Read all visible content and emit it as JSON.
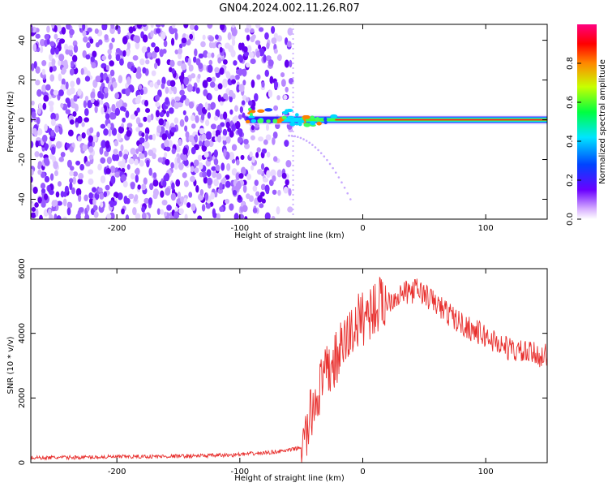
{
  "title": "GN04.2024.002.11.26.R07",
  "chart_data": [
    {
      "type": "heatmap",
      "xlabel": "Height of straight line (km)",
      "ylabel": "Frequency (Hz)",
      "xlim": [
        -270,
        150
      ],
      "ylim": [
        -50,
        48
      ],
      "x_ticks": [
        "-200",
        "-100",
        "0",
        "100"
      ],
      "y_ticks": [
        "-40",
        "-20",
        "0",
        "20",
        "40"
      ],
      "colorbar": {
        "label": "Normalized spectral amplitude",
        "range": [
          0,
          1
        ],
        "ticks": [
          "0.0",
          "0.2",
          "0.4",
          "0.6",
          "0.8"
        ]
      },
      "features": {
        "noise_region_x": [
          -270,
          -58
        ],
        "signal_band_x": [
          -95,
          150
        ],
        "signal_center_hz": 0,
        "faint_trail": {
          "x": [
            -60,
            -10
          ],
          "y": [
            -8,
            -40
          ]
        }
      },
      "grid": false
    },
    {
      "type": "line",
      "xlabel": "Height of straight line (km)",
      "ylabel": "SNR (10 * v/v)",
      "xlim": [
        -270,
        150
      ],
      "ylim": [
        0,
        6000
      ],
      "x_ticks": [
        "-200",
        "-100",
        "0",
        "100"
      ],
      "y_ticks": [
        "0",
        "2000",
        "4000",
        "6000"
      ],
      "color": "#e8302e",
      "series": [
        {
          "x": [
            -270,
            -240,
            -200,
            -150,
            -110,
            -80,
            -60,
            -48,
            -45,
            -40,
            -35,
            -30,
            -25,
            -20,
            -15,
            -10,
            -5,
            0,
            10,
            20,
            30,
            40,
            45,
            50,
            60,
            70,
            80,
            90,
            100,
            110,
            120,
            130,
            140,
            150
          ],
          "values": [
            150,
            160,
            180,
            200,
            230,
            300,
            380,
            500,
            1000,
            1800,
            2300,
            2700,
            3000,
            3300,
            3700,
            4000,
            4300,
            4500,
            4800,
            5000,
            5200,
            5300,
            5350,
            5200,
            4900,
            4600,
            4300,
            4100,
            3900,
            3700,
            3500,
            3400,
            3350,
            3300
          ]
        }
      ],
      "grid": false
    }
  ]
}
